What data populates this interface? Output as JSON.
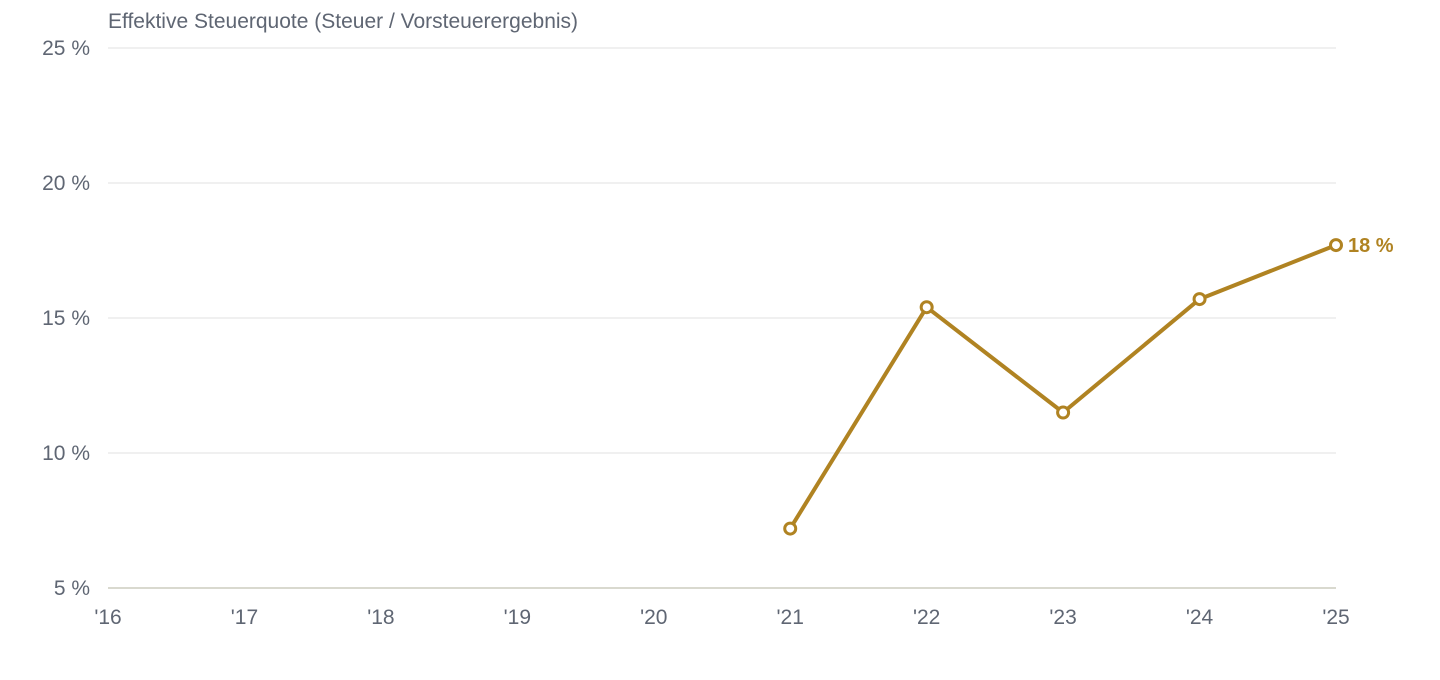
{
  "chart_data": {
    "type": "line",
    "title": "Effektive Steuerquote (Steuer / Vorsteuerergebnis)",
    "xlabel": "",
    "ylabel": "",
    "categories": [
      "'16",
      "'17",
      "'18",
      "'19",
      "'20",
      "'21",
      "'22",
      "'23",
      "'24",
      "'25"
    ],
    "y_ticks": [
      5,
      10,
      15,
      20,
      25
    ],
    "y_tick_labels": [
      "5 %",
      "10 %",
      "15 %",
      "20 %",
      "25 %"
    ],
    "ylim": [
      5,
      25
    ],
    "grid": true,
    "series": [
      {
        "color": "#b08322",
        "values": [
          null,
          null,
          null,
          null,
          null,
          7.2,
          15.4,
          11.5,
          15.7,
          17.7
        ]
      }
    ],
    "end_label": "18 %"
  }
}
